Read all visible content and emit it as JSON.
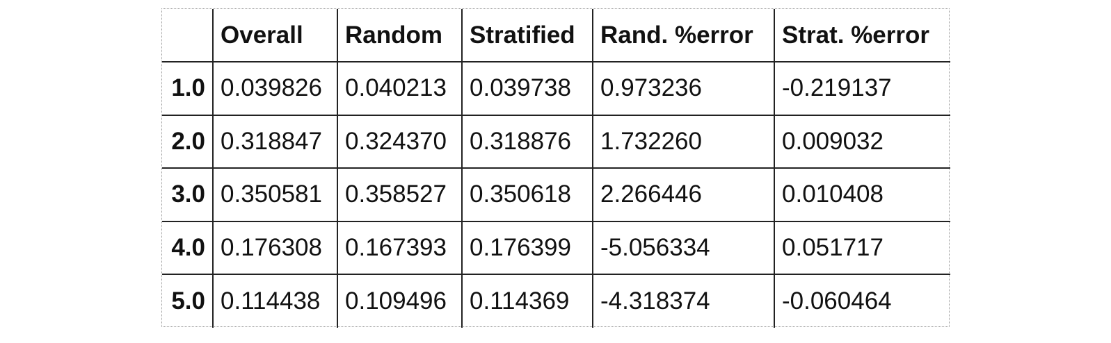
{
  "table": {
    "columns": [
      "",
      "Overall",
      "Random",
      "Stratified",
      "Rand. %error",
      "Strat. %error"
    ],
    "rows": [
      {
        "index": "1.0",
        "values": [
          "0.039826",
          "0.040213",
          "0.039738",
          "0.973236",
          "-0.219137"
        ]
      },
      {
        "index": "2.0",
        "values": [
          "0.318847",
          "0.324370",
          "0.318876",
          "1.732260",
          "0.009032"
        ]
      },
      {
        "index": "3.0",
        "values": [
          "0.350581",
          "0.358527",
          "0.350618",
          "2.266446",
          "0.010408"
        ]
      },
      {
        "index": "4.0",
        "values": [
          "0.176308",
          "0.167393",
          "0.176399",
          "-5.056334",
          "0.051717"
        ]
      },
      {
        "index": "5.0",
        "values": [
          "0.114438",
          "0.109496",
          "0.114369",
          "-4.318374",
          "-0.060464"
        ]
      }
    ]
  }
}
